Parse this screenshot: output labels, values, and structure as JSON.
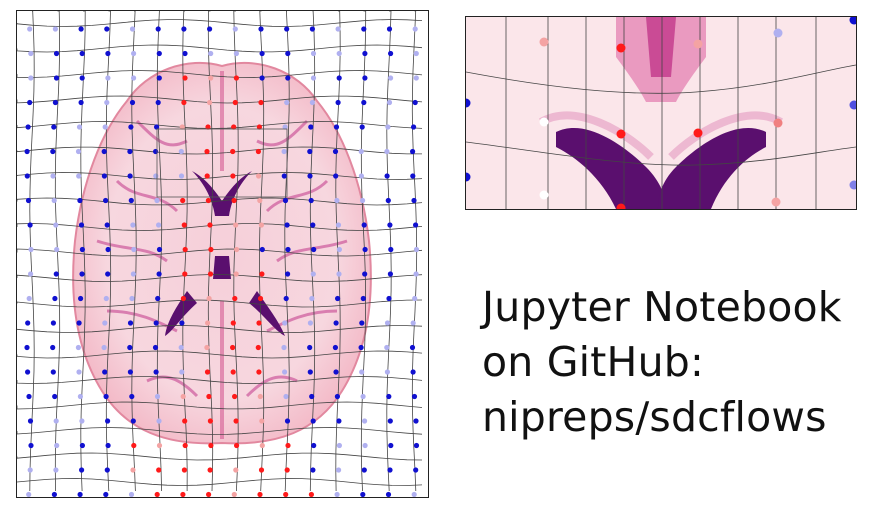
{
  "caption": {
    "line1": "Jupyter Notebook",
    "line2": "on GitHub:",
    "line3": "nipreps/sdcflows"
  },
  "figure": {
    "colors": {
      "brain_base": "#fbe3e8",
      "ventricle": "#5a0f6e",
      "sulci": "#c2378a",
      "grid_line": "#333333",
      "dot_positive": "#ff1a1a",
      "dot_negative": "#1010d0",
      "dot_positive_light": "#f4a3a3",
      "dot_negative_light": "#b0b0f0"
    }
  }
}
